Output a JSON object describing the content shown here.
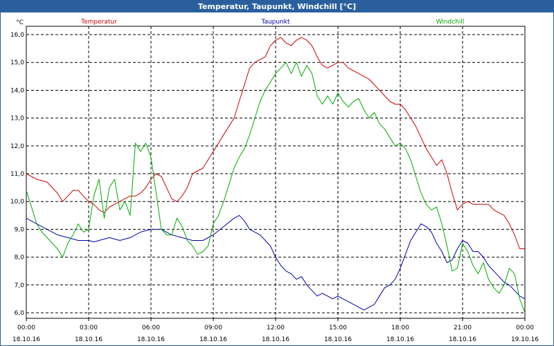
{
  "window": {
    "title": "Temperatur, Taupunkt, Windchill [°C]"
  },
  "chart_data": {
    "type": "line",
    "title": "Temperatur, Taupunkt, Windchill [°C]",
    "ylabel": "°C",
    "ylim": [
      5.8,
      16.3
    ],
    "xlim": [
      0,
      24
    ],
    "grid": true,
    "legend": "top",
    "y_ticks": [
      "6,0",
      "7,0",
      "8,0",
      "9,0",
      "10,0",
      "11,0",
      "12,0",
      "13,0",
      "14,0",
      "15,0",
      "16,0"
    ],
    "x_ticks": [
      {
        "time": "00:00",
        "date": "18.10.16"
      },
      {
        "time": "03:00",
        "date": "18.10.16"
      },
      {
        "time": "06:00",
        "date": "18.10.16"
      },
      {
        "time": "09:00",
        "date": "18.10.16"
      },
      {
        "time": "12:00",
        "date": "18.10.16"
      },
      {
        "time": "15:00",
        "date": "18.10.16"
      },
      {
        "time": "18:00",
        "date": "18.10.16"
      },
      {
        "time": "21:00",
        "date": "18.10.16"
      },
      {
        "time": "00:00",
        "date": "19.10.16"
      }
    ],
    "series": [
      {
        "name": "Temperatur",
        "color": "#cc0000",
        "points": [
          [
            0.0,
            11.0
          ],
          [
            0.5,
            10.8
          ],
          [
            1.0,
            10.7
          ],
          [
            1.5,
            10.3
          ],
          [
            1.75,
            10.0
          ],
          [
            2.0,
            10.2
          ],
          [
            2.25,
            10.4
          ],
          [
            2.5,
            10.4
          ],
          [
            2.75,
            10.2
          ],
          [
            3.0,
            10.0
          ],
          [
            3.25,
            9.9
          ],
          [
            3.5,
            9.7
          ],
          [
            3.75,
            9.6
          ],
          [
            4.0,
            9.8
          ],
          [
            4.25,
            9.9
          ],
          [
            4.5,
            10.0
          ],
          [
            4.75,
            10.1
          ],
          [
            5.0,
            10.2
          ],
          [
            5.25,
            10.2
          ],
          [
            5.5,
            10.3
          ],
          [
            5.75,
            10.5
          ],
          [
            6.0,
            10.8
          ],
          [
            6.25,
            11.0
          ],
          [
            6.5,
            10.9
          ],
          [
            6.75,
            10.5
          ],
          [
            7.0,
            10.1
          ],
          [
            7.25,
            10.0
          ],
          [
            7.5,
            10.2
          ],
          [
            7.75,
            10.5
          ],
          [
            8.0,
            11.0
          ],
          [
            8.25,
            11.1
          ],
          [
            8.5,
            11.2
          ],
          [
            8.75,
            11.5
          ],
          [
            9.0,
            11.8
          ],
          [
            9.25,
            12.1
          ],
          [
            9.5,
            12.4
          ],
          [
            9.75,
            12.7
          ],
          [
            10.0,
            13.0
          ],
          [
            10.25,
            13.6
          ],
          [
            10.5,
            14.2
          ],
          [
            10.75,
            14.8
          ],
          [
            11.0,
            15.0
          ],
          [
            11.25,
            15.1
          ],
          [
            11.5,
            15.2
          ],
          [
            11.75,
            15.6
          ],
          [
            12.0,
            15.8
          ],
          [
            12.25,
            15.9
          ],
          [
            12.5,
            15.7
          ],
          [
            12.75,
            15.6
          ],
          [
            13.0,
            15.8
          ],
          [
            13.25,
            15.9
          ],
          [
            13.5,
            15.8
          ],
          [
            13.75,
            15.6
          ],
          [
            14.0,
            15.2
          ],
          [
            14.25,
            14.9
          ],
          [
            14.5,
            14.8
          ],
          [
            14.75,
            14.9
          ],
          [
            15.0,
            15.0
          ],
          [
            15.25,
            15.0
          ],
          [
            15.5,
            14.8
          ],
          [
            15.75,
            14.7
          ],
          [
            16.0,
            14.6
          ],
          [
            16.25,
            14.5
          ],
          [
            16.5,
            14.4
          ],
          [
            16.75,
            14.2
          ],
          [
            17.0,
            14.0
          ],
          [
            17.25,
            13.8
          ],
          [
            17.5,
            13.6
          ],
          [
            17.75,
            13.5
          ],
          [
            18.0,
            13.5
          ],
          [
            18.25,
            13.3
          ],
          [
            18.5,
            13.0
          ],
          [
            18.75,
            12.7
          ],
          [
            19.0,
            12.3
          ],
          [
            19.25,
            11.9
          ],
          [
            19.5,
            11.6
          ],
          [
            19.75,
            11.3
          ],
          [
            20.0,
            11.5
          ],
          [
            20.25,
            11.0
          ],
          [
            20.5,
            10.3
          ],
          [
            20.75,
            9.7
          ],
          [
            21.0,
            9.9
          ],
          [
            21.25,
            10.0
          ],
          [
            21.5,
            9.9
          ],
          [
            21.75,
            9.9
          ],
          [
            22.0,
            9.9
          ],
          [
            22.25,
            9.9
          ],
          [
            22.5,
            9.7
          ],
          [
            22.75,
            9.6
          ],
          [
            23.0,
            9.5
          ],
          [
            23.25,
            9.2
          ],
          [
            23.5,
            8.8
          ],
          [
            23.75,
            8.3
          ],
          [
            24.0,
            8.3
          ]
        ]
      },
      {
        "name": "Taupunkt",
        "color": "#0000aa",
        "points": [
          [
            0.0,
            9.4
          ],
          [
            0.5,
            9.2
          ],
          [
            1.0,
            9.0
          ],
          [
            1.5,
            8.8
          ],
          [
            2.0,
            8.7
          ],
          [
            2.5,
            8.6
          ],
          [
            3.0,
            8.6
          ],
          [
            3.25,
            8.55
          ],
          [
            3.5,
            8.6
          ],
          [
            4.0,
            8.7
          ],
          [
            4.5,
            8.6
          ],
          [
            5.0,
            8.7
          ],
          [
            5.5,
            8.9
          ],
          [
            6.0,
            9.0
          ],
          [
            6.5,
            9.0
          ],
          [
            7.0,
            8.8
          ],
          [
            7.5,
            8.7
          ],
          [
            8.0,
            8.6
          ],
          [
            8.5,
            8.6
          ],
          [
            9.0,
            8.8
          ],
          [
            9.5,
            9.1
          ],
          [
            10.0,
            9.4
          ],
          [
            10.25,
            9.5
          ],
          [
            10.5,
            9.3
          ],
          [
            10.75,
            9.0
          ],
          [
            11.0,
            8.9
          ],
          [
            11.25,
            8.8
          ],
          [
            11.5,
            8.6
          ],
          [
            11.75,
            8.4
          ],
          [
            12.0,
            8.0
          ],
          [
            12.25,
            7.7
          ],
          [
            12.5,
            7.5
          ],
          [
            12.75,
            7.4
          ],
          [
            13.0,
            7.2
          ],
          [
            13.25,
            7.3
          ],
          [
            13.5,
            7.0
          ],
          [
            13.75,
            6.8
          ],
          [
            14.0,
            6.6
          ],
          [
            14.25,
            6.7
          ],
          [
            14.5,
            6.6
          ],
          [
            14.75,
            6.5
          ],
          [
            15.0,
            6.6
          ],
          [
            15.25,
            6.5
          ],
          [
            15.5,
            6.4
          ],
          [
            15.75,
            6.3
          ],
          [
            16.0,
            6.2
          ],
          [
            16.25,
            6.1
          ],
          [
            16.5,
            6.2
          ],
          [
            16.75,
            6.3
          ],
          [
            17.0,
            6.6
          ],
          [
            17.25,
            6.9
          ],
          [
            17.5,
            7.0
          ],
          [
            17.75,
            7.2
          ],
          [
            18.0,
            7.6
          ],
          [
            18.25,
            8.1
          ],
          [
            18.5,
            8.6
          ],
          [
            18.75,
            8.9
          ],
          [
            19.0,
            9.2
          ],
          [
            19.25,
            9.1
          ],
          [
            19.5,
            8.9
          ],
          [
            19.75,
            8.5
          ],
          [
            20.0,
            8.2
          ],
          [
            20.25,
            7.8
          ],
          [
            20.5,
            7.9
          ],
          [
            20.75,
            8.3
          ],
          [
            21.0,
            8.6
          ],
          [
            21.25,
            8.5
          ],
          [
            21.5,
            8.2
          ],
          [
            21.75,
            8.2
          ],
          [
            22.0,
            8.0
          ],
          [
            22.25,
            7.7
          ],
          [
            22.5,
            7.5
          ],
          [
            22.75,
            7.3
          ],
          [
            23.0,
            7.1
          ],
          [
            23.25,
            7.0
          ],
          [
            23.5,
            6.8
          ],
          [
            23.75,
            6.6
          ],
          [
            24.0,
            6.5
          ]
        ]
      },
      {
        "name": "Windchill",
        "color": "#00aa00",
        "points": [
          [
            0.0,
            10.4
          ],
          [
            0.25,
            9.8
          ],
          [
            0.5,
            9.2
          ],
          [
            0.75,
            8.9
          ],
          [
            1.0,
            8.7
          ],
          [
            1.25,
            8.5
          ],
          [
            1.5,
            8.3
          ],
          [
            1.75,
            8.0
          ],
          [
            2.0,
            8.5
          ],
          [
            2.25,
            8.8
          ],
          [
            2.5,
            9.2
          ],
          [
            2.75,
            8.9
          ],
          [
            3.0,
            9.0
          ],
          [
            3.25,
            10.2
          ],
          [
            3.5,
            10.8
          ],
          [
            3.75,
            9.4
          ],
          [
            4.0,
            10.5
          ],
          [
            4.25,
            10.8
          ],
          [
            4.5,
            9.7
          ],
          [
            4.75,
            10.0
          ],
          [
            5.0,
            9.5
          ],
          [
            5.25,
            12.1
          ],
          [
            5.5,
            11.8
          ],
          [
            5.75,
            12.1
          ],
          [
            6.0,
            11.6
          ],
          [
            6.25,
            10.3
          ],
          [
            6.5,
            9.0
          ],
          [
            6.75,
            8.8
          ],
          [
            7.0,
            8.8
          ],
          [
            7.25,
            9.4
          ],
          [
            7.5,
            9.1
          ],
          [
            7.75,
            8.6
          ],
          [
            8.0,
            8.4
          ],
          [
            8.25,
            8.1
          ],
          [
            8.5,
            8.2
          ],
          [
            8.75,
            8.4
          ],
          [
            9.0,
            9.2
          ],
          [
            9.25,
            9.5
          ],
          [
            9.5,
            10.0
          ],
          [
            9.75,
            10.6
          ],
          [
            10.0,
            11.2
          ],
          [
            10.25,
            11.6
          ],
          [
            10.5,
            11.9
          ],
          [
            10.75,
            12.4
          ],
          [
            11.0,
            13.0
          ],
          [
            11.25,
            13.6
          ],
          [
            11.5,
            14.0
          ],
          [
            11.75,
            14.3
          ],
          [
            12.0,
            14.6
          ],
          [
            12.25,
            14.8
          ],
          [
            12.5,
            15.0
          ],
          [
            12.75,
            14.6
          ],
          [
            13.0,
            15.0
          ],
          [
            13.25,
            14.5
          ],
          [
            13.5,
            14.9
          ],
          [
            13.75,
            14.6
          ],
          [
            14.0,
            13.8
          ],
          [
            14.25,
            13.5
          ],
          [
            14.5,
            13.8
          ],
          [
            14.75,
            13.5
          ],
          [
            15.0,
            13.9
          ],
          [
            15.25,
            13.6
          ],
          [
            15.5,
            13.4
          ],
          [
            15.75,
            13.6
          ],
          [
            16.0,
            13.7
          ],
          [
            16.25,
            13.3
          ],
          [
            16.5,
            13.0
          ],
          [
            16.75,
            13.2
          ],
          [
            17.0,
            12.8
          ],
          [
            17.25,
            12.6
          ],
          [
            17.5,
            12.3
          ],
          [
            17.75,
            12.0
          ],
          [
            18.0,
            12.1
          ],
          [
            18.25,
            11.9
          ],
          [
            18.5,
            11.5
          ],
          [
            18.75,
            10.9
          ],
          [
            19.0,
            10.3
          ],
          [
            19.25,
            9.9
          ],
          [
            19.5,
            9.7
          ],
          [
            19.75,
            9.8
          ],
          [
            20.0,
            9.2
          ],
          [
            20.25,
            8.4
          ],
          [
            20.5,
            7.5
          ],
          [
            20.75,
            7.6
          ],
          [
            21.0,
            8.5
          ],
          [
            21.25,
            8.2
          ],
          [
            21.5,
            7.7
          ],
          [
            21.75,
            7.4
          ],
          [
            22.0,
            7.8
          ],
          [
            22.25,
            7.2
          ],
          [
            22.5,
            6.9
          ],
          [
            22.75,
            6.7
          ],
          [
            23.0,
            7.0
          ],
          [
            23.25,
            7.6
          ],
          [
            23.5,
            7.4
          ],
          [
            23.75,
            6.5
          ],
          [
            24.0,
            6.0
          ]
        ]
      }
    ]
  }
}
